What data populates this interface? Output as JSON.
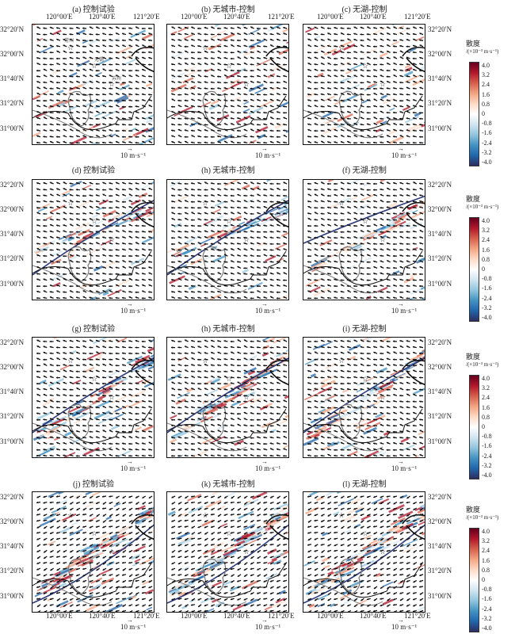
{
  "panels": [
    {
      "label": "(a) 控制试验"
    },
    {
      "label": "(b) 无城市-控制"
    },
    {
      "label": "(c) 无湖-控制"
    },
    {
      "label": "(d) 控制试验"
    },
    {
      "label": "(h) 无城市-控制"
    },
    {
      "label": "(f) 无湖-控制"
    },
    {
      "label": "(g) 控制试验"
    },
    {
      "label": "(h) 无城市-控制"
    },
    {
      "label": "(i) 无湖-控制"
    },
    {
      "label": "(j) 控制试验"
    },
    {
      "label": "(k) 无城市-控制"
    },
    {
      "label": "(l) 无湖-控制"
    }
  ],
  "lon_ticks": [
    "120°00′E",
    "120°40′E",
    "121°20′E"
  ],
  "lat_ticks": [
    "32°20′N",
    "32°00′N",
    "31°40′N",
    "31°20′N",
    "31°00′N"
  ],
  "reference_vector": "10 m·s⁻¹",
  "cities": [
    "常州",
    "无锡",
    "苏州"
  ],
  "colorbar": {
    "title": "散度",
    "units": "/(×10⁻³ m·s⁻¹)",
    "ticks": [
      "4.0",
      "3.2",
      "2.4",
      "1.6",
      "0.8",
      "0",
      "-0.8",
      "-1.6",
      "-2.4",
      "-3.2",
      "-4.0"
    ],
    "colors": [
      "#67001f",
      "#b2182b",
      "#d6604d",
      "#f4a582",
      "#fddbc7",
      "#ffffff",
      "#d1e5f0",
      "#92c5de",
      "#4393c3",
      "#2166ac",
      "#2d2d5f"
    ]
  }
}
